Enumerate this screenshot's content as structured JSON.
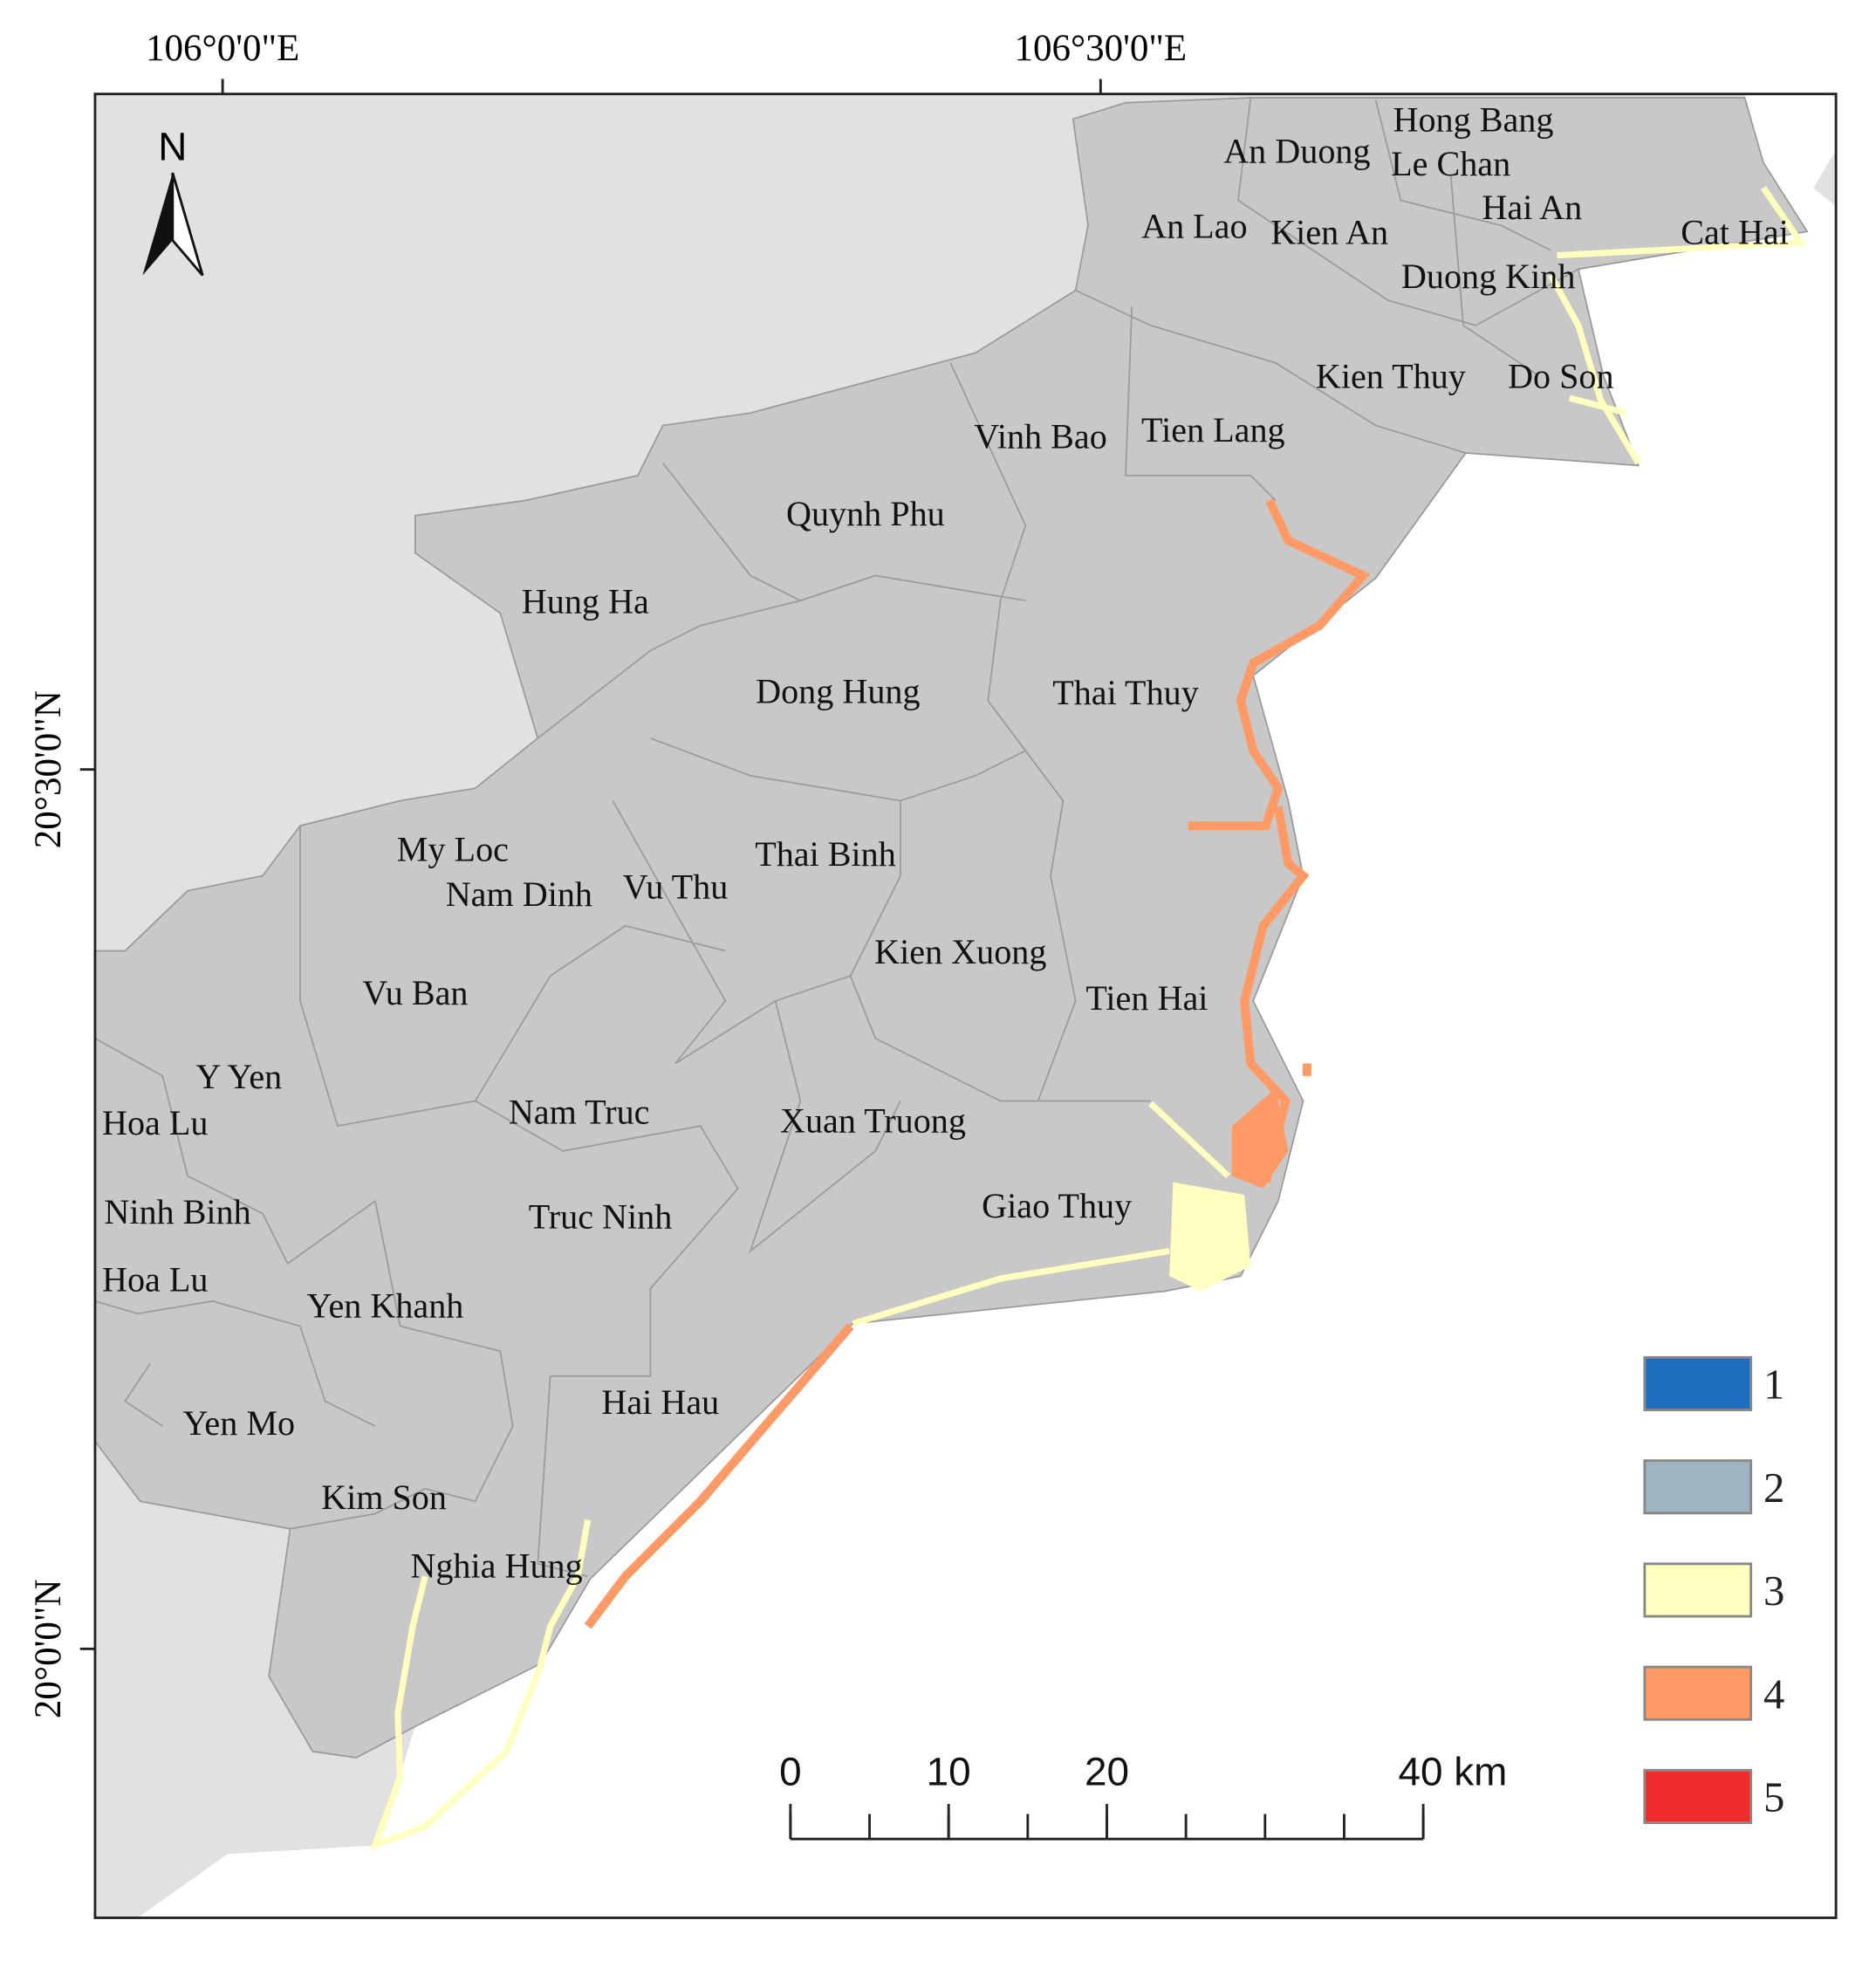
{
  "map": {
    "north": "N",
    "lon_labels": [
      "106°0'0\"E",
      "106°30'0\"E"
    ],
    "lat_labels": [
      "20°30'0\"N",
      "20°0'0\"N"
    ],
    "districts": [
      "Hong Bang",
      "An Duong",
      "Le Chan",
      "Hai An",
      "An Lao",
      "Kien An",
      "Cat Hai",
      "Duong Kinh",
      "Kien Thuy",
      "Do Son",
      "Vinh Bao",
      "Tien Lang",
      "Quynh Phu",
      "Hung Ha",
      "Dong Hung",
      "Thai Thuy",
      "My Loc",
      "Thai Binh",
      "Nam Dinh",
      "Vu Thu",
      "Kien Xuong",
      "Vu Ban",
      "Tien Hai",
      "Y Yen",
      "Hoa Lu",
      "Nam Truc",
      "Xuan Truong",
      "Ninh Binh",
      "Truc Ninh",
      "Giao Thuy",
      "Hoa Lu",
      "Yen Khanh",
      "Hai Hau",
      "Yen Mo",
      "Kim Son",
      "Nghia Hung"
    ],
    "legend": [
      {
        "label": "1",
        "color": "#1f6fbf"
      },
      {
        "label": "2",
        "color": "#9fb4c3"
      },
      {
        "label": "3",
        "color": "#ffffc0"
      },
      {
        "label": "4",
        "color": "#ff9966"
      },
      {
        "label": "5",
        "color": "#ee2c2c"
      }
    ],
    "scale_bar": {
      "ticks": [
        0,
        10,
        20,
        {
          "value": 40,
          "label": "40 km"
        }
      ]
    }
  }
}
